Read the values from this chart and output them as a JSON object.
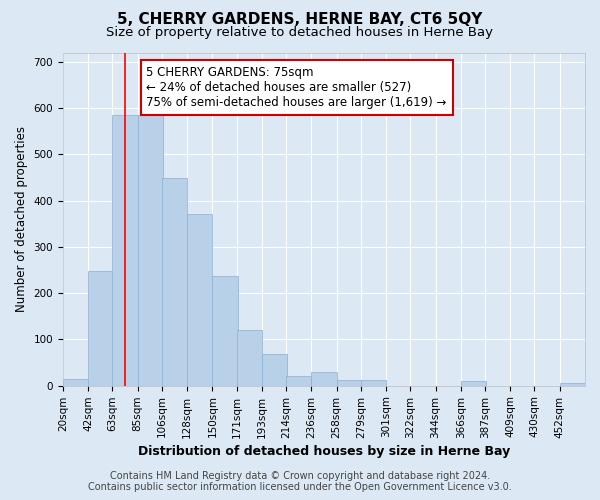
{
  "title": "5, CHERRY GARDENS, HERNE BAY, CT6 5QY",
  "subtitle": "Size of property relative to detached houses in Herne Bay",
  "xlabel": "Distribution of detached houses by size in Herne Bay",
  "ylabel": "Number of detached properties",
  "bins": [
    "20sqm",
    "42sqm",
    "63sqm",
    "85sqm",
    "106sqm",
    "128sqm",
    "150sqm",
    "171sqm",
    "193sqm",
    "214sqm",
    "236sqm",
    "258sqm",
    "279sqm",
    "301sqm",
    "322sqm",
    "344sqm",
    "366sqm",
    "387sqm",
    "409sqm",
    "430sqm",
    "452sqm"
  ],
  "bin_lefts": [
    20,
    42,
    63,
    85,
    106,
    128,
    150,
    171,
    193,
    214,
    236,
    258,
    279,
    301,
    322,
    344,
    366,
    387,
    409,
    430,
    452
  ],
  "bin_width": 22,
  "bar_heights": [
    15,
    248,
    585,
    585,
    448,
    372,
    237,
    120,
    68,
    22,
    30,
    12,
    12,
    0,
    0,
    0,
    10,
    0,
    0,
    0,
    5
  ],
  "bar_color": "#b8d0e8",
  "bar_edgecolor": "#8ab0d0",
  "red_line_x": 74,
  "ylim": [
    0,
    720
  ],
  "yticks": [
    0,
    100,
    200,
    300,
    400,
    500,
    600,
    700
  ],
  "annotation_text_line1": "5 CHERRY GARDENS: 75sqm",
  "annotation_text_line2": "← 24% of detached houses are smaller (527)",
  "annotation_text_line3": "75% of semi-detached houses are larger (1,619) →",
  "annotation_box_color": "#ffffff",
  "annotation_box_edgecolor": "#cc0000",
  "footer_line1": "Contains HM Land Registry data © Crown copyright and database right 2024.",
  "footer_line2": "Contains public sector information licensed under the Open Government Licence v3.0.",
  "background_color": "#dce9f5",
  "grid_color": "#ffffff",
  "title_fontsize": 11,
  "subtitle_fontsize": 9.5,
  "ylabel_fontsize": 8.5,
  "xlabel_fontsize": 9,
  "tick_fontsize": 7.5,
  "footer_fontsize": 7,
  "annot_fontsize": 8.5
}
